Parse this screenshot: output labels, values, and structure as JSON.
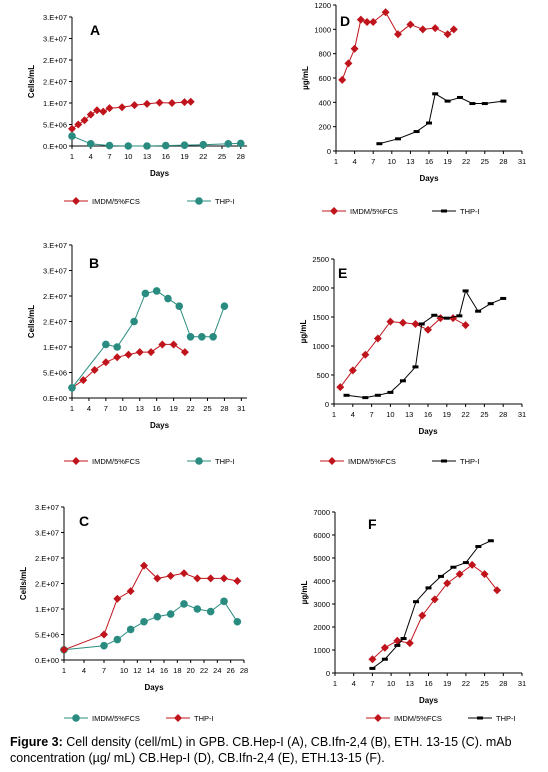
{
  "caption": {
    "label": "Figure 3:",
    "text": "Cell density (cell/mL) in GPB. CB.Hep-I (A), CB.Ifn-2,4 (B), ETH. 13-15 (C). mAb concentration (µg/ mL) CB.Hep-I (D), CB.Ifn-2,4 (E), ETH.13-15 (F)."
  },
  "colors": {
    "red": "#c0141c",
    "teal": "#2a8c80",
    "black": "#000000"
  },
  "chart_data": [
    {
      "id": "A",
      "type": "line",
      "panel_label": "A",
      "xlabel": "Days",
      "ylabel": "Cells/mL",
      "xlim": [
        1,
        29
      ],
      "ylim": [
        0,
        30000000
      ],
      "xticks": [
        "1",
        "4",
        "7",
        "10",
        "13",
        "16",
        "19",
        "22",
        "25",
        "28"
      ],
      "yticks": [
        "0.E+00",
        "5.E+06",
        "1.E+07",
        "2.E+07",
        "2.E+07",
        "3.E+07",
        "3.E+07"
      ],
      "legend_position": "bottom",
      "series": [
        {
          "name": "IMDM/5%FCS",
          "color": "red",
          "marker": "diamond",
          "x": [
            1,
            2,
            3,
            4,
            5,
            6,
            7,
            9,
            11,
            13,
            15,
            17,
            19,
            20
          ],
          "y": [
            4000000,
            5000000,
            6000000,
            7300000,
            8300000,
            8000000,
            8800000,
            9000000,
            9500000,
            9800000,
            10100000,
            10000000,
            10200000,
            10300000
          ]
        },
        {
          "name": "THP-I",
          "color": "teal",
          "marker": "circle",
          "x": [
            1,
            4,
            7,
            10,
            13,
            16,
            19,
            22,
            26,
            28
          ],
          "y": [
            2300000,
            500000,
            100000,
            0,
            0,
            100000,
            200000,
            300000,
            500000,
            600000
          ]
        }
      ]
    },
    {
      "id": "D",
      "type": "line",
      "panel_label": "D",
      "xlabel": "Days",
      "ylabel": "µg/mL",
      "xlim": [
        1,
        31
      ],
      "ylim": [
        0,
        1200
      ],
      "xticks": [
        "1",
        "4",
        "7",
        "10",
        "13",
        "16",
        "19",
        "22",
        "25",
        "28",
        "31"
      ],
      "yticks": [
        "0",
        "200",
        "400",
        "600",
        "800",
        "1000",
        "1200"
      ],
      "legend_position": "bottom",
      "series": [
        {
          "name": "IMDM/5%FCS",
          "color": "red",
          "marker": "diamond",
          "x": [
            2,
            3,
            4,
            5,
            6,
            7,
            9,
            11,
            13,
            15,
            17,
            19,
            20
          ],
          "y": [
            585,
            720,
            840,
            1080,
            1060,
            1060,
            1140,
            960,
            1040,
            1000,
            1010,
            960,
            1000
          ]
        },
        {
          "name": "THP-I",
          "color": "black",
          "marker": "dash",
          "x": [
            8,
            11,
            14,
            16,
            17,
            19,
            21,
            23,
            25,
            28
          ],
          "y": [
            60,
            100,
            160,
            230,
            470,
            410,
            440,
            390,
            390,
            410
          ]
        }
      ]
    },
    {
      "id": "B",
      "type": "line",
      "panel_label": "B",
      "xlabel": "Days",
      "ylabel": "Cells/mL",
      "xlim": [
        1,
        32
      ],
      "ylim": [
        0,
        30000000
      ],
      "xticks": [
        "1",
        "4",
        "7",
        "10",
        "13",
        "16",
        "19",
        "22",
        "25",
        "28",
        "31"
      ],
      "yticks": [
        "0.E+00",
        "5.E+06",
        "1.E+07",
        "2.E+07",
        "2.E+07",
        "3.E+07",
        "3.E+07"
      ],
      "legend_position": "bottom",
      "series": [
        {
          "name": "IMDM/5%FCS",
          "color": "red",
          "marker": "diamond",
          "x": [
            1,
            3,
            5,
            7,
            9,
            11,
            13,
            15,
            17,
            19,
            21
          ],
          "y": [
            2000000,
            3500000,
            5500000,
            7000000,
            8000000,
            8500000,
            9000000,
            9000000,
            10500000,
            10500000,
            9000000
          ]
        },
        {
          "name": "THP-I",
          "color": "teal",
          "marker": "circle",
          "x": [
            1,
            7,
            9,
            12,
            14,
            16,
            18,
            20,
            22,
            24,
            26,
            28
          ],
          "y": [
            2000000,
            10500000,
            10000000,
            15000000,
            20500000,
            21000000,
            19500000,
            18000000,
            12000000,
            12000000,
            12000000,
            18000000
          ]
        }
      ]
    },
    {
      "id": "E",
      "type": "line",
      "panel_label": "E",
      "xlabel": "Days",
      "ylabel": "µg/mL",
      "xlim": [
        1,
        31
      ],
      "ylim": [
        0,
        2500
      ],
      "xticks": [
        "1",
        "4",
        "7",
        "10",
        "13",
        "16",
        "19",
        "22",
        "25",
        "28",
        "31"
      ],
      "yticks": [
        "0",
        "500",
        "1000",
        "1500",
        "2000",
        "2500"
      ],
      "legend_position": "bottom",
      "series": [
        {
          "name": "IMDM/5%FCS",
          "color": "red",
          "marker": "diamond",
          "x": [
            2,
            4,
            6,
            8,
            10,
            12,
            14,
            16,
            18,
            20,
            22
          ],
          "y": [
            290,
            580,
            850,
            1130,
            1420,
            1400,
            1380,
            1280,
            1480,
            1480,
            1360
          ]
        },
        {
          "name": "THP-I",
          "color": "black",
          "marker": "dash",
          "x": [
            3,
            6,
            8,
            10,
            12,
            14,
            15,
            17,
            19,
            21,
            22,
            24,
            26,
            28
          ],
          "y": [
            150,
            110,
            150,
            200,
            400,
            640,
            1380,
            1530,
            1480,
            1520,
            1950,
            1600,
            1730,
            1820
          ]
        }
      ]
    },
    {
      "id": "C",
      "type": "line",
      "panel_label": "C",
      "xlabel": "Days",
      "ylabel": "Cells/mL",
      "xlim": [
        1,
        28
      ],
      "ylim": [
        0,
        30000000
      ],
      "xticks": [
        "1",
        "4",
        "7",
        "10",
        "12",
        "14",
        "16",
        "18",
        "20",
        "22",
        "24",
        "26",
        "28"
      ],
      "yticks": [
        "0.E+00",
        "5.E+06",
        "1.E+07",
        "2.E+07",
        "2.E+07",
        "3.E+07",
        "3.E+07"
      ],
      "legend_position": "bottom",
      "series": [
        {
          "name": "IMDM/5%FCS",
          "color": "teal",
          "marker": "circle",
          "x": [
            1,
            7,
            9,
            11,
            13,
            15,
            17,
            19,
            21,
            23,
            25,
            27
          ],
          "y": [
            2000000,
            2800000,
            4000000,
            6000000,
            7500000,
            8500000,
            9000000,
            11000000,
            10000000,
            9500000,
            11500000,
            7500000
          ]
        },
        {
          "name": "THP-I",
          "color": "red",
          "marker": "diamond",
          "x": [
            1,
            7,
            9,
            11,
            13,
            15,
            17,
            19,
            21,
            23,
            25,
            27
          ],
          "y": [
            2000000,
            5000000,
            12000000,
            13500000,
            18500000,
            16000000,
            16500000,
            17000000,
            16000000,
            16000000,
            16000000,
            15500000
          ]
        }
      ]
    },
    {
      "id": "F",
      "type": "line",
      "panel_label": "F",
      "xlabel": "Days",
      "ylabel": "µg/mL",
      "xlim": [
        1,
        31
      ],
      "ylim": [
        0,
        7000
      ],
      "xticks": [
        "1",
        "4",
        "7",
        "10",
        "13",
        "16",
        "19",
        "22",
        "25",
        "28",
        "31"
      ],
      "yticks": [
        "0",
        "1000",
        "2000",
        "3000",
        "4000",
        "5000",
        "6000",
        "7000"
      ],
      "legend_position": "bottom",
      "series": [
        {
          "name": "IMDM/5%FCS",
          "color": "red",
          "marker": "diamond",
          "x": [
            7,
            9,
            11,
            13,
            15,
            17,
            19,
            21,
            23,
            25,
            27
          ],
          "y": [
            600,
            1100,
            1400,
            1300,
            2500,
            3200,
            3900,
            4300,
            4700,
            4300,
            3600
          ]
        },
        {
          "name": "THP-I",
          "color": "black",
          "marker": "dash",
          "x": [
            7,
            9,
            11,
            12,
            14,
            16,
            18,
            20,
            22,
            24,
            26
          ],
          "y": [
            200,
            600,
            1200,
            1500,
            3100,
            3700,
            4200,
            4600,
            4800,
            5500,
            5750
          ]
        }
      ]
    }
  ]
}
